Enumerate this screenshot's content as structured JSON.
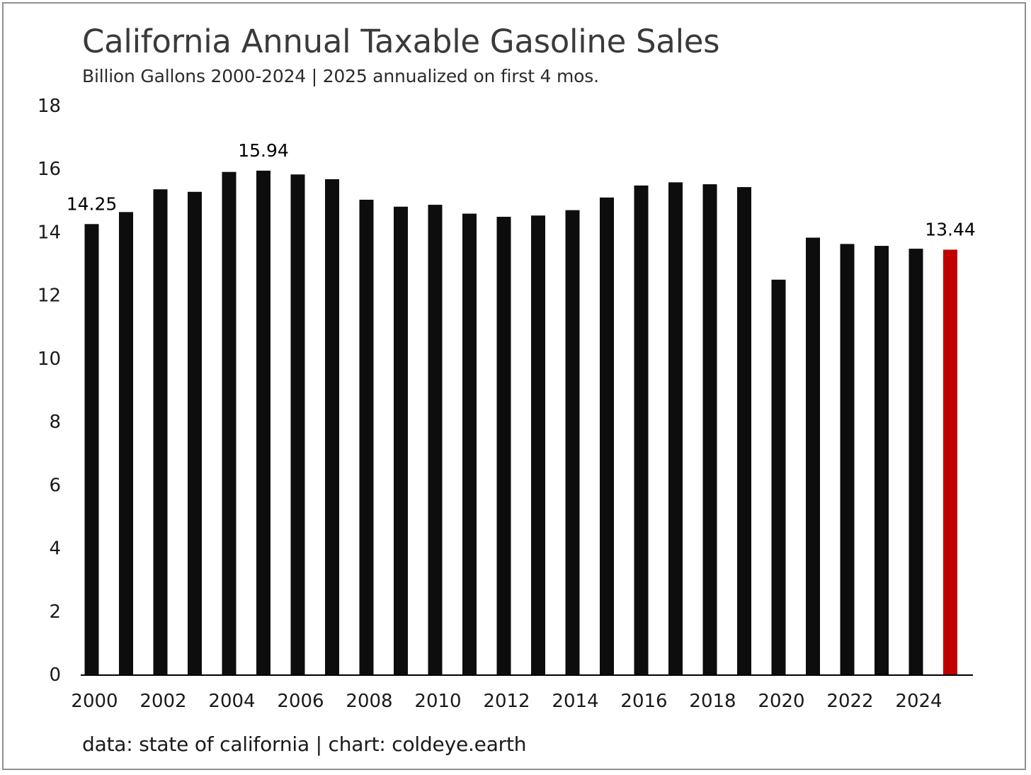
{
  "chart_data": {
    "type": "bar",
    "title": "California Annual Taxable Gasoline Sales",
    "subtitle": "Billion Gallons 2000-2024 | 2025 annualized on first 4 mos.",
    "source": "data: state of california | chart: coldeye.earth",
    "categories": [
      "2000",
      "2001",
      "2002",
      "2003",
      "2004",
      "2005",
      "2006",
      "2007",
      "2008",
      "2009",
      "2010",
      "2011",
      "2012",
      "2013",
      "2014",
      "2015",
      "2016",
      "2017",
      "2018",
      "2019",
      "2020",
      "2021",
      "2022",
      "2023",
      "2024",
      "2025"
    ],
    "x_tick_labels": [
      "2000",
      "2002",
      "2004",
      "2006",
      "2008",
      "2010",
      "2012",
      "2014",
      "2016",
      "2018",
      "2020",
      "2022",
      "2024"
    ],
    "values": [
      14.25,
      14.63,
      15.35,
      15.27,
      15.9,
      15.94,
      15.82,
      15.67,
      15.02,
      14.8,
      14.86,
      14.58,
      14.48,
      14.52,
      14.69,
      15.09,
      15.47,
      15.57,
      15.51,
      15.42,
      12.49,
      13.82,
      13.62,
      13.56,
      13.47,
      13.44
    ],
    "data_labels": [
      {
        "category": "2000",
        "text": "14.25"
      },
      {
        "category": "2005",
        "text": "15.94"
      },
      {
        "category": "2025",
        "text": "13.44"
      }
    ],
    "ylim": [
      0,
      18
    ],
    "y_ticks": [
      0,
      2,
      4,
      6,
      8,
      10,
      12,
      14,
      16,
      18
    ],
    "xlabel": "",
    "ylabel": "",
    "grid": false,
    "legend": "none",
    "colors": {
      "default_bar": "#0d0d0d",
      "highlight_bar": "#c00000",
      "highlight_category": "2025"
    }
  }
}
